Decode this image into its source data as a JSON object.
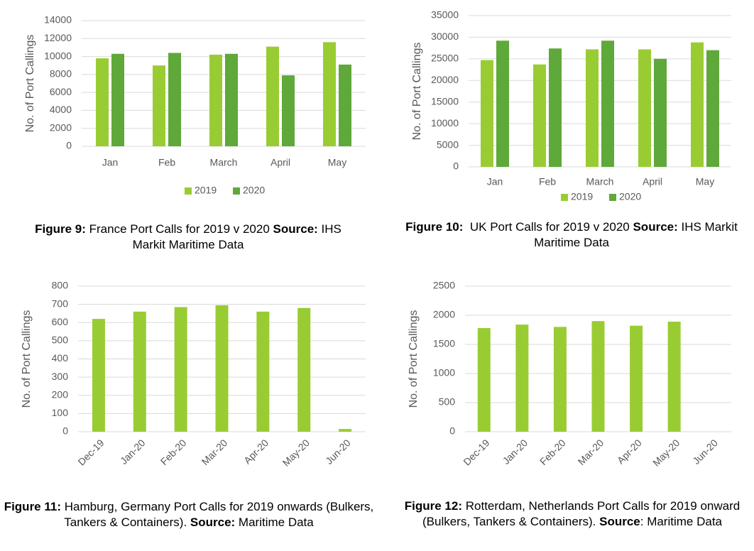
{
  "chart_data": [
    {
      "type": "bar",
      "y_label": "No. of Port Callings",
      "categories": [
        "Jan",
        "Feb",
        "March",
        "April",
        "May"
      ],
      "series": [
        {
          "name": "2019",
          "color": "#99cc33",
          "values": [
            9800,
            9000,
            10200,
            11100,
            11600
          ]
        },
        {
          "name": "2020",
          "color": "#5fa83a",
          "values": [
            10300,
            10400,
            10300,
            7900,
            9100
          ]
        }
      ],
      "ylim": [
        0,
        14000
      ],
      "yticks": [
        0,
        2000,
        4000,
        6000,
        8000,
        10000,
        12000,
        14000
      ],
      "grid": true,
      "caption": [
        {
          "text": "Figure 9:",
          "bold": true
        },
        {
          "text": " France Port Calls for 2019 v 2020 ",
          "bold": false
        },
        {
          "text": "Source:",
          "bold": true
        },
        {
          "text": " IHS Markit Maritime Data",
          "bold": false
        }
      ]
    },
    {
      "type": "bar",
      "y_label": "No. of Port Callings",
      "categories": [
        "Jan",
        "Feb",
        "March",
        "April",
        "May"
      ],
      "series": [
        {
          "name": "2019",
          "color": "#99cc33",
          "values": [
            24700,
            23700,
            27200,
            27200,
            28800
          ]
        },
        {
          "name": "2020",
          "color": "#5fa83a",
          "values": [
            29200,
            27400,
            29200,
            25000,
            27000
          ]
        }
      ],
      "ylim": [
        0,
        35000
      ],
      "yticks": [
        0,
        5000,
        10000,
        15000,
        20000,
        25000,
        30000,
        35000
      ],
      "grid": true,
      "caption": [
        {
          "text": "Figure 10:",
          "bold": true
        },
        {
          "text": "  UK Port Calls for 2019 v 2020 ",
          "bold": false
        },
        {
          "text": "Source:",
          "bold": true
        },
        {
          "text": " IHS Markit Maritime Data",
          "bold": false
        }
      ]
    },
    {
      "type": "bar",
      "y_label": "No. of Port Callings",
      "categories": [
        "Dec-19",
        "Jan-20",
        "Feb-20",
        "Mar-20",
        "Apr-20",
        "May-20",
        "Jun-20"
      ],
      "values": [
        620,
        660,
        685,
        695,
        660,
        680,
        15
      ],
      "color": "#99cc33",
      "ylim": [
        0,
        800
      ],
      "yticks": [
        0,
        100,
        200,
        300,
        400,
        500,
        600,
        700,
        800
      ],
      "grid": true,
      "caption": [
        {
          "text": "Figure 11:",
          "bold": true
        },
        {
          "text": " Hamburg, Germany Port Calls for 2019 onwards (Bulkers, Tankers & Containers). ",
          "bold": false
        },
        {
          "text": "Source:",
          "bold": true
        },
        {
          "text": " Maritime Data",
          "bold": false
        }
      ]
    },
    {
      "type": "bar",
      "y_label": "No. of Port Callings",
      "categories": [
        "Dec-19",
        "Jan-20",
        "Feb-20",
        "Mar-20",
        "Apr-20",
        "May-20",
        "Jun-20"
      ],
      "values": [
        1780,
        1840,
        1800,
        1900,
        1820,
        1890,
        null
      ],
      "color": "#99cc33",
      "ylim": [
        0,
        2500
      ],
      "yticks": [
        0,
        500,
        1000,
        1500,
        2000,
        2500
      ],
      "grid": true,
      "caption": [
        {
          "text": "Figure 12:",
          "bold": true
        },
        {
          "text": " Rotterdam, Netherlands Port Calls for 2019 onward (Bulkers, Tankers & Containers). ",
          "bold": false
        },
        {
          "text": "Source",
          "bold": true
        },
        {
          "text": ": Maritime Data",
          "bold": false
        }
      ]
    }
  ]
}
